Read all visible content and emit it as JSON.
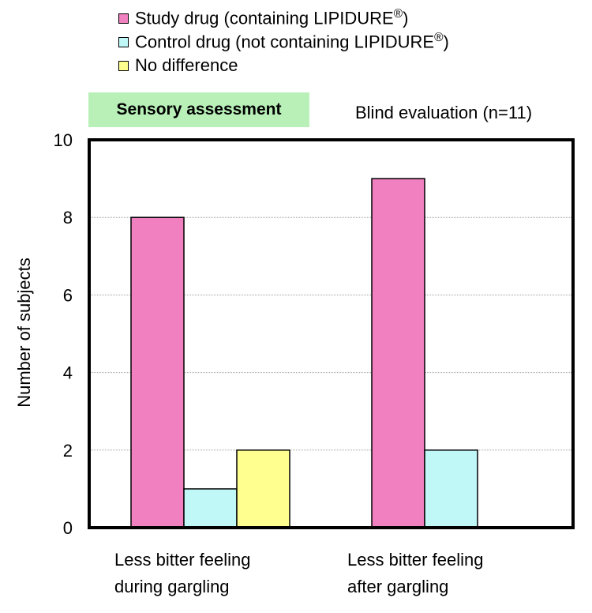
{
  "chart_data": {
    "type": "bar",
    "panel_label": "Sensory assessment",
    "subtitle": "Blind evaluation (n=11)",
    "ylabel": "Number of subjects",
    "xlabel": "",
    "ylim": [
      0,
      10
    ],
    "yticks": [
      0,
      2,
      4,
      6,
      8,
      10
    ],
    "grid": true,
    "legend_placement": "top",
    "categories": [
      [
        "Less bitter feeling",
        "during gargling"
      ],
      [
        "Less bitter feeling",
        "after gargling"
      ]
    ],
    "series": [
      {
        "name": "Study drug (containing LIPIDURE",
        "mark": "®",
        "name_end": ")",
        "color": "#f080c0",
        "values": [
          8,
          9
        ]
      },
      {
        "name": "Control drug (not containing LIPIDURE",
        "mark": "®",
        "name_end": ")",
        "color": "#c0f8f8",
        "values": [
          1,
          2
        ]
      },
      {
        "name": "No difference",
        "mark": "",
        "name_end": "",
        "color": "#ffff90",
        "values": [
          2,
          0
        ]
      }
    ]
  }
}
